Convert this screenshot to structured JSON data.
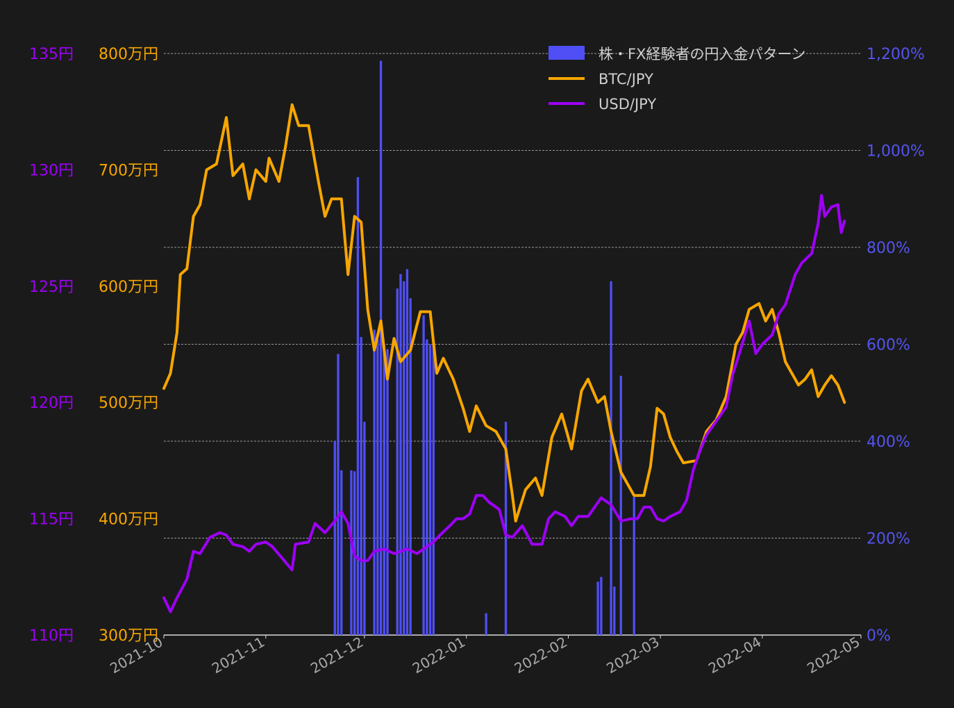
{
  "chart_data": {
    "type": "bar+line",
    "background_color": "#1a1a1a",
    "grid": "horizontal dashed",
    "legend_placement": "top-right",
    "x_axis": {
      "type": "date",
      "range": [
        "2021-10-01",
        "2022-05-01"
      ],
      "tick_labels": [
        "2021-10",
        "2021-11",
        "2021-12",
        "2022-01",
        "2022-02",
        "2022-03",
        "2022-04",
        "2022-05"
      ]
    },
    "axes": {
      "usd": {
        "position": "left-outer",
        "color": "#9d00f5",
        "range": [
          110,
          135
        ],
        "tick_values": [
          110,
          115,
          120,
          125,
          130,
          135
        ],
        "tick_labels": [
          "110円",
          "115円",
          "120円",
          "125円",
          "130円",
          "135円"
        ]
      },
      "btc": {
        "position": "left-inner",
        "color": "#f7a600",
        "range": [
          300,
          800
        ],
        "tick_values": [
          300,
          400,
          500,
          600,
          700,
          800
        ],
        "tick_labels": [
          "300万円",
          "400万円",
          "500万円",
          "600万円",
          "700万円",
          "800万円"
        ]
      },
      "pct": {
        "position": "right",
        "color": "#5454f0",
        "range": [
          0,
          1200
        ],
        "tick_values": [
          0,
          200,
          400,
          600,
          800,
          1000,
          1200
        ],
        "tick_labels": [
          "0%",
          "200%",
          "400%",
          "600%",
          "800%",
          "1,000%",
          "1,200%"
        ]
      }
    },
    "series": [
      {
        "name": "株・FX経験者の円入金パターン",
        "type": "bar",
        "axis": "pct",
        "color": "#4f4ff5",
        "points": [
          [
            "2021-11-22",
            400
          ],
          [
            "2021-11-23",
            580
          ],
          [
            "2021-11-24",
            340
          ],
          [
            "2021-11-27",
            340
          ],
          [
            "2021-11-28",
            338
          ],
          [
            "2021-11-29",
            945
          ],
          [
            "2021-11-30",
            615
          ],
          [
            "2021-12-01",
            440
          ],
          [
            "2021-12-04",
            630
          ],
          [
            "2021-12-05",
            610
          ],
          [
            "2021-12-06",
            1185
          ],
          [
            "2021-12-07",
            600
          ],
          [
            "2021-12-08",
            590
          ],
          [
            "2021-12-11",
            715
          ],
          [
            "2021-12-12",
            745
          ],
          [
            "2021-12-13",
            730
          ],
          [
            "2021-12-14",
            755
          ],
          [
            "2021-12-15",
            695
          ],
          [
            "2021-12-19",
            660
          ],
          [
            "2021-12-20",
            610
          ],
          [
            "2021-12-21",
            600
          ],
          [
            "2021-12-22",
            610
          ],
          [
            "2022-01-07",
            45
          ],
          [
            "2022-01-13",
            440
          ],
          [
            "2022-02-14",
            730
          ],
          [
            "2022-02-17",
            535
          ],
          [
            "2022-02-21",
            285
          ],
          [
            "2022-02-10",
            110
          ],
          [
            "2022-02-11",
            120
          ],
          [
            "2022-02-15",
            100
          ]
        ]
      },
      {
        "name": "BTC/JPY",
        "type": "line",
        "axis": "btc",
        "color": "#f7a600",
        "points": [
          [
            "2021-10-01",
            512
          ],
          [
            "2021-10-03",
            525
          ],
          [
            "2021-10-05",
            560
          ],
          [
            "2021-10-06",
            610
          ],
          [
            "2021-10-08",
            615
          ],
          [
            "2021-10-10",
            660
          ],
          [
            "2021-10-12",
            670
          ],
          [
            "2021-10-14",
            700
          ],
          [
            "2021-10-17",
            705
          ],
          [
            "2021-10-20",
            745
          ],
          [
            "2021-10-22",
            695
          ],
          [
            "2021-10-25",
            705
          ],
          [
            "2021-10-27",
            675
          ],
          [
            "2021-10-29",
            700
          ],
          [
            "2021-11-01",
            690
          ],
          [
            "2021-11-02",
            710
          ],
          [
            "2021-11-05",
            690
          ],
          [
            "2021-11-07",
            720
          ],
          [
            "2021-11-09",
            756
          ],
          [
            "2021-11-11",
            738
          ],
          [
            "2021-11-14",
            738
          ],
          [
            "2021-11-17",
            690
          ],
          [
            "2021-11-19",
            660
          ],
          [
            "2021-11-21",
            675
          ],
          [
            "2021-11-24",
            675
          ],
          [
            "2021-11-26",
            610
          ],
          [
            "2021-11-28",
            660
          ],
          [
            "2021-11-30",
            655
          ],
          [
            "2021-12-02",
            580
          ],
          [
            "2021-12-04",
            545
          ],
          [
            "2021-12-06",
            570
          ],
          [
            "2021-12-08",
            520
          ],
          [
            "2021-12-10",
            555
          ],
          [
            "2021-12-12",
            535
          ],
          [
            "2021-12-15",
            545
          ],
          [
            "2021-12-18",
            578
          ],
          [
            "2021-12-21",
            578
          ],
          [
            "2021-12-23",
            525
          ],
          [
            "2021-12-25",
            538
          ],
          [
            "2021-12-28",
            520
          ],
          [
            "2021-12-31",
            495
          ],
          [
            "2022-01-02",
            475
          ],
          [
            "2022-01-04",
            497
          ],
          [
            "2022-01-07",
            480
          ],
          [
            "2022-01-10",
            475
          ],
          [
            "2022-01-13",
            460
          ],
          [
            "2022-01-15",
            420
          ],
          [
            "2022-01-16",
            398
          ],
          [
            "2022-01-19",
            425
          ],
          [
            "2022-01-22",
            435
          ],
          [
            "2022-01-24",
            420
          ],
          [
            "2022-01-27",
            470
          ],
          [
            "2022-01-30",
            490
          ],
          [
            "2022-02-02",
            460
          ],
          [
            "2022-02-05",
            510
          ],
          [
            "2022-02-07",
            520
          ],
          [
            "2022-02-10",
            500
          ],
          [
            "2022-02-12",
            505
          ],
          [
            "2022-02-14",
            475
          ],
          [
            "2022-02-17",
            440
          ],
          [
            "2022-02-21",
            420
          ],
          [
            "2022-02-24",
            420
          ],
          [
            "2022-02-26",
            445
          ],
          [
            "2022-02-28",
            495
          ],
          [
            "2022-03-02",
            490
          ],
          [
            "2022-03-04",
            470
          ],
          [
            "2022-03-06",
            458
          ],
          [
            "2022-03-08",
            448
          ],
          [
            "2022-03-12",
            450
          ],
          [
            "2022-03-15",
            475
          ],
          [
            "2022-03-18",
            485
          ],
          [
            "2022-03-21",
            505
          ],
          [
            "2022-03-24",
            550
          ],
          [
            "2022-03-26",
            560
          ],
          [
            "2022-03-28",
            580
          ],
          [
            "2022-03-31",
            585
          ],
          [
            "2022-04-02",
            570
          ],
          [
            "2022-04-04",
            580
          ],
          [
            "2022-04-06",
            560
          ],
          [
            "2022-04-08",
            535
          ],
          [
            "2022-04-10",
            525
          ],
          [
            "2022-04-12",
            515
          ],
          [
            "2022-04-14",
            520
          ],
          [
            "2022-04-16",
            528
          ],
          [
            "2022-04-18",
            505
          ],
          [
            "2022-04-20",
            515
          ],
          [
            "2022-04-22",
            523
          ],
          [
            "2022-04-24",
            515
          ],
          [
            "2022-04-26",
            500
          ]
        ]
      },
      {
        "name": "USD/JPY",
        "type": "line",
        "axis": "usd",
        "color": "#9d00f5",
        "points": [
          [
            "2021-10-01",
            111.6
          ],
          [
            "2021-10-03",
            111.0
          ],
          [
            "2021-10-05",
            111.6
          ],
          [
            "2021-10-08",
            112.4
          ],
          [
            "2021-10-10",
            113.6
          ],
          [
            "2021-10-12",
            113.5
          ],
          [
            "2021-10-15",
            114.2
          ],
          [
            "2021-10-18",
            114.4
          ],
          [
            "2021-10-20",
            114.3
          ],
          [
            "2021-10-22",
            113.9
          ],
          [
            "2021-10-25",
            113.8
          ],
          [
            "2021-10-27",
            113.6
          ],
          [
            "2021-10-29",
            113.9
          ],
          [
            "2021-11-01",
            114.0
          ],
          [
            "2021-11-03",
            113.8
          ],
          [
            "2021-11-06",
            113.3
          ],
          [
            "2021-11-09",
            112.8
          ],
          [
            "2021-11-10",
            113.9
          ],
          [
            "2021-11-14",
            114.0
          ],
          [
            "2021-11-16",
            114.8
          ],
          [
            "2021-11-19",
            114.4
          ],
          [
            "2021-11-22",
            114.9
          ],
          [
            "2021-11-24",
            115.3
          ],
          [
            "2021-11-26",
            114.8
          ],
          [
            "2021-11-28",
            113.4
          ],
          [
            "2021-11-30",
            113.2
          ],
          [
            "2021-12-02",
            113.2
          ],
          [
            "2021-12-04",
            113.6
          ],
          [
            "2021-12-07",
            113.7
          ],
          [
            "2021-12-10",
            113.5
          ],
          [
            "2021-12-12",
            113.6
          ],
          [
            "2021-12-14",
            113.7
          ],
          [
            "2021-12-17",
            113.5
          ],
          [
            "2021-12-20",
            113.8
          ],
          [
            "2021-12-22",
            114.0
          ],
          [
            "2021-12-24",
            114.3
          ],
          [
            "2021-12-27",
            114.7
          ],
          [
            "2021-12-29",
            115.0
          ],
          [
            "2021-12-31",
            115.0
          ],
          [
            "2022-01-02",
            115.2
          ],
          [
            "2022-01-04",
            116.0
          ],
          [
            "2022-01-06",
            116.0
          ],
          [
            "2022-01-08",
            115.7
          ],
          [
            "2022-01-11",
            115.4
          ],
          [
            "2022-01-13",
            114.3
          ],
          [
            "2022-01-15",
            114.2
          ],
          [
            "2022-01-18",
            114.7
          ],
          [
            "2022-01-21",
            113.9
          ],
          [
            "2022-01-24",
            113.9
          ],
          [
            "2022-01-26",
            115.0
          ],
          [
            "2022-01-28",
            115.3
          ],
          [
            "2022-01-31",
            115.1
          ],
          [
            "2022-02-02",
            114.7
          ],
          [
            "2022-02-04",
            115.1
          ],
          [
            "2022-02-07",
            115.1
          ],
          [
            "2022-02-09",
            115.5
          ],
          [
            "2022-02-11",
            115.9
          ],
          [
            "2022-02-14",
            115.6
          ],
          [
            "2022-02-17",
            114.9
          ],
          [
            "2022-02-20",
            115.0
          ],
          [
            "2022-02-22",
            115.0
          ],
          [
            "2022-02-24",
            115.5
          ],
          [
            "2022-02-26",
            115.5
          ],
          [
            "2022-02-28",
            115.0
          ],
          [
            "2022-03-02",
            114.9
          ],
          [
            "2022-03-04",
            115.1
          ],
          [
            "2022-03-07",
            115.3
          ],
          [
            "2022-03-09",
            115.8
          ],
          [
            "2022-03-11",
            117.1
          ],
          [
            "2022-03-13",
            117.9
          ],
          [
            "2022-03-15",
            118.6
          ],
          [
            "2022-03-17",
            119.0
          ],
          [
            "2022-03-19",
            119.4
          ],
          [
            "2022-03-21",
            119.8
          ],
          [
            "2022-03-23",
            121.2
          ],
          [
            "2022-03-25",
            122.1
          ],
          [
            "2022-03-28",
            123.5
          ],
          [
            "2022-03-30",
            122.1
          ],
          [
            "2022-04-01",
            122.5
          ],
          [
            "2022-04-04",
            122.9
          ],
          [
            "2022-04-06",
            123.8
          ],
          [
            "2022-04-08",
            124.2
          ],
          [
            "2022-04-11",
            125.5
          ],
          [
            "2022-04-13",
            126.0
          ],
          [
            "2022-04-16",
            126.4
          ],
          [
            "2022-04-18",
            127.7
          ],
          [
            "2022-04-19",
            128.9
          ],
          [
            "2022-04-20",
            128.0
          ],
          [
            "2022-04-22",
            128.4
          ],
          [
            "2022-04-24",
            128.5
          ],
          [
            "2022-04-25",
            127.3
          ],
          [
            "2022-04-26",
            127.8
          ]
        ]
      }
    ]
  }
}
